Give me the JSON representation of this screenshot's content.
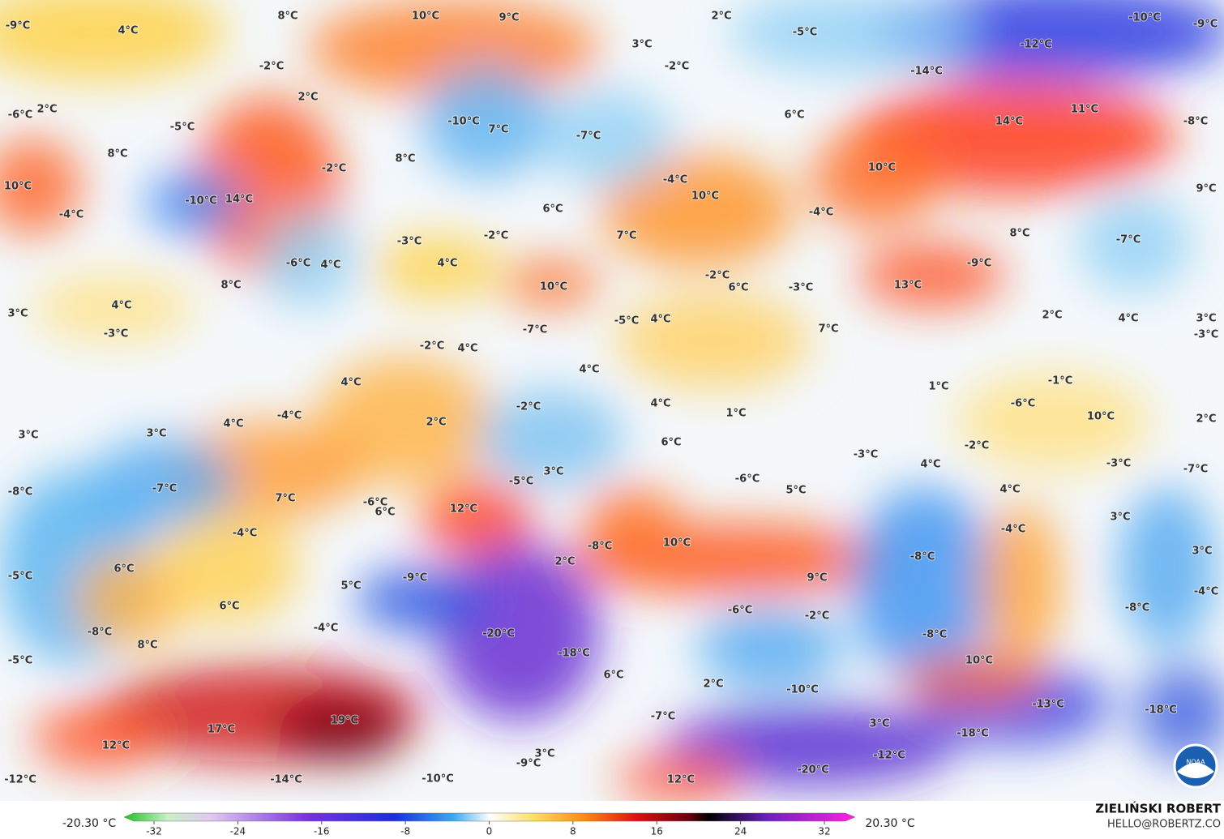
{
  "map": {
    "labels": [
      "-9°C",
      "4°C",
      "8°C",
      "10°C",
      "9°C",
      "2°C",
      "-5°C",
      "-10°C",
      "-9°C",
      "3°C",
      "-2°C",
      "-12°C",
      "-2°C",
      "-14°C",
      "2°C",
      "-6°C",
      "2°C",
      "-5°C",
      "-10°C",
      "7°C",
      "-7°C",
      "6°C",
      "14°C",
      "11°C",
      "-8°C",
      "8°C",
      "8°C",
      "-2°C",
      "10°C",
      "-4°C",
      "10°C",
      "-10°C",
      "14°C",
      "10°C",
      "9°C",
      "-4°C",
      "6°C",
      "-4°C",
      "-3°C",
      "-2°C",
      "7°C",
      "8°C",
      "-7°C",
      "-6°C",
      "4°C",
      "4°C",
      "-9°C",
      "-2°C",
      "8°C",
      "10°C",
      "6°C",
      "-3°C",
      "13°C",
      "3°C",
      "4°C",
      "2°C",
      "4°C",
      "3°C",
      "-3°C",
      "-7°C",
      "-5°C",
      "4°C",
      "7°C",
      "-3°C",
      "-2°C",
      "4°C",
      "4°C",
      "4°C",
      "1°C",
      "-1°C",
      "-2°C",
      "-4°C",
      "4°C",
      "2°C",
      "4°C",
      "1°C",
      "-6°C",
      "10°C",
      "2°C",
      "3°C",
      "3°C",
      "6°C",
      "-2°C",
      "-3°C",
      "4°C",
      "-3°C",
      "-7°C",
      "3°C",
      "-5°C",
      "-6°C",
      "5°C",
      "-8°C",
      "-7°C",
      "7°C",
      "-6°C",
      "6°C",
      "12°C",
      "4°C",
      "3°C",
      "-4°C",
      "-4°C",
      "-8°C",
      "10°C",
      "-8°C",
      "3°C",
      "6°C",
      "2°C",
      "-5°C",
      "-9°C",
      "9°C",
      "5°C",
      "-4°C",
      "6°C",
      "-6°C",
      "-2°C",
      "-8°C",
      "-4°C",
      "-8°C",
      "-20°C",
      "-8°C",
      "8°C",
      "-18°C",
      "-5°C",
      "10°C",
      "6°C",
      "2°C",
      "-10°C",
      "-13°C",
      "-7°C",
      "-18°C",
      "17°C",
      "19°C",
      "3°C",
      "-18°C",
      "12°C",
      "3°C",
      "-9°C",
      "-12°C",
      "-20°C",
      "-12°C",
      "-14°C",
      "-10°C",
      "12°C"
    ],
    "logo": "NOAA"
  },
  "legend": {
    "min_label": "-20.30 °C",
    "max_label": "20.30 °C",
    "ticks": [
      -32,
      -24,
      -16,
      -8,
      0,
      8,
      16,
      24,
      32
    ]
  },
  "credit": {
    "name": "ZIELIŃSKI ROBERT",
    "contact": "HELLO@ROBERTZ.CO"
  }
}
